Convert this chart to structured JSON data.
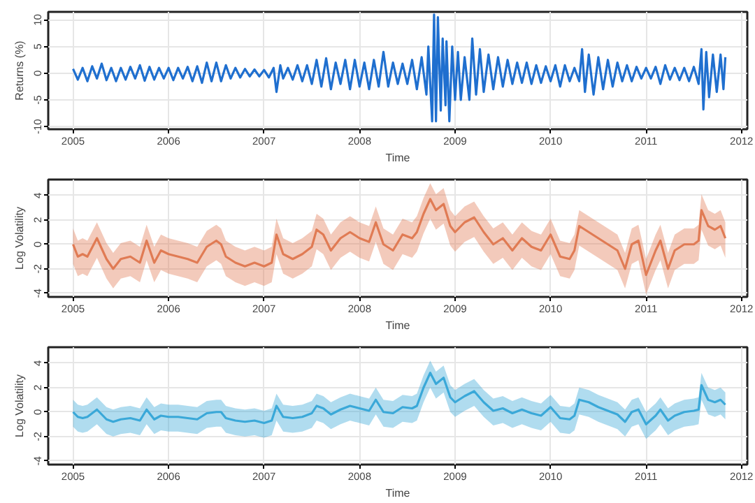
{
  "chart_data": [
    {
      "type": "line",
      "xlabel": "Time",
      "ylabel": "Returns (%)",
      "xlim": [
        2004.74,
        2012.06
      ],
      "xticks": [
        2005,
        2006,
        2007,
        2008,
        2009,
        2010,
        2011,
        2012
      ],
      "ylim": [
        -10.5,
        11.5
      ],
      "yticks": [
        -10,
        -5,
        0,
        5,
        10
      ],
      "grid": true,
      "x": [
        2005.0,
        2005.05,
        2005.1,
        2005.15,
        2005.2,
        2005.25,
        2005.3,
        2005.35,
        2005.4,
        2005.45,
        2005.5,
        2005.55,
        2005.6,
        2005.65,
        2005.7,
        2005.75,
        2005.8,
        2005.85,
        2005.9,
        2005.95,
        2006.0,
        2006.05,
        2006.1,
        2006.15,
        2006.2,
        2006.25,
        2006.3,
        2006.35,
        2006.4,
        2006.45,
        2006.5,
        2006.55,
        2006.6,
        2006.65,
        2006.7,
        2006.75,
        2006.8,
        2006.85,
        2006.9,
        2006.95,
        2007.0,
        2007.05,
        2007.1,
        2007.13,
        2007.17,
        2007.2,
        2007.25,
        2007.3,
        2007.35,
        2007.4,
        2007.45,
        2007.5,
        2007.55,
        2007.6,
        2007.65,
        2007.7,
        2007.75,
        2007.8,
        2007.85,
        2007.9,
        2007.95,
        2008.0,
        2008.05,
        2008.1,
        2008.15,
        2008.2,
        2008.25,
        2008.3,
        2008.35,
        2008.4,
        2008.45,
        2008.5,
        2008.55,
        2008.6,
        2008.65,
        2008.7,
        2008.72,
        2008.76,
        2008.78,
        2008.8,
        2008.82,
        2008.85,
        2008.87,
        2008.9,
        2008.91,
        2008.94,
        2008.97,
        2009.0,
        2009.03,
        2009.06,
        2009.1,
        2009.15,
        2009.18,
        2009.22,
        2009.26,
        2009.3,
        2009.35,
        2009.4,
        2009.45,
        2009.5,
        2009.55,
        2009.6,
        2009.65,
        2009.7,
        2009.75,
        2009.8,
        2009.85,
        2009.9,
        2009.95,
        2010.0,
        2010.05,
        2010.1,
        2010.15,
        2010.2,
        2010.25,
        2010.3,
        2010.33,
        2010.36,
        2010.4,
        2010.45,
        2010.5,
        2010.55,
        2010.6,
        2010.65,
        2010.7,
        2010.75,
        2010.8,
        2010.85,
        2010.9,
        2010.95,
        2011.0,
        2011.05,
        2011.1,
        2011.15,
        2011.2,
        2011.25,
        2011.3,
        2011.35,
        2011.4,
        2011.45,
        2011.5,
        2011.55,
        2011.58,
        2011.6,
        2011.63,
        2011.66,
        2011.7,
        2011.74,
        2011.78,
        2011.81,
        2011.83
      ],
      "series": [
        {
          "color": "#1f6fcf",
          "values": [
            0.8,
            -1.2,
            1.0,
            -1.5,
            1.3,
            -1.0,
            1.8,
            -1.3,
            1.0,
            -1.5,
            1.0,
            -1.2,
            1.2,
            -1.0,
            1.5,
            -1.4,
            1.2,
            -1.2,
            1.0,
            -1.0,
            1.0,
            -1.3,
            1.0,
            -1.0,
            1.2,
            -1.5,
            1.3,
            -1.8,
            2.0,
            -1.5,
            2.0,
            -1.5,
            1.5,
            -1.0,
            1.0,
            -0.8,
            0.8,
            -0.6,
            0.7,
            -0.6,
            0.6,
            -0.8,
            1.0,
            -3.5,
            1.5,
            -1.0,
            1.0,
            -1.2,
            1.5,
            -1.5,
            1.5,
            -2.0,
            2.5,
            -2.5,
            2.8,
            -3.0,
            2.0,
            -2.0,
            2.5,
            -3.0,
            2.5,
            -2.5,
            2.0,
            -3.0,
            2.5,
            -2.5,
            4.0,
            -2.5,
            2.0,
            -2.0,
            1.8,
            -2.0,
            2.5,
            -3.0,
            3.0,
            -4.0,
            5.0,
            -9.0,
            11.0,
            -9.0,
            10.5,
            -7.0,
            6.5,
            -6.0,
            6.0,
            -9.0,
            5.0,
            -5.0,
            4.0,
            -5.0,
            3.0,
            -5.0,
            6.5,
            -4.0,
            4.5,
            -3.5,
            3.5,
            -3.0,
            3.0,
            -2.5,
            2.5,
            -2.0,
            2.0,
            -1.8,
            2.0,
            -2.0,
            1.5,
            -1.8,
            1.3,
            -1.5,
            1.5,
            -2.5,
            1.5,
            -1.5,
            1.0,
            -1.5,
            4.5,
            -3.5,
            3.5,
            -4.0,
            3.0,
            -3.0,
            2.5,
            -2.5,
            2.0,
            -1.5,
            1.5,
            -1.5,
            1.2,
            -1.0,
            1.0,
            -1.0,
            1.2,
            -2.0,
            1.5,
            -1.2,
            1.0,
            -1.3,
            1.0,
            -1.5,
            1.2,
            -2.0,
            4.5,
            -6.8,
            4.0,
            -4.5,
            3.5,
            -3.5,
            3.5,
            -3.0,
            3.0
          ]
        }
      ]
    },
    {
      "type": "line",
      "xlabel": "Time",
      "ylabel": "Log Volatility",
      "xlim": [
        2004.74,
        2012.06
      ],
      "xticks": [
        2005,
        2006,
        2007,
        2008,
        2009,
        2010,
        2011,
        2012
      ],
      "ylim": [
        -4.3,
        5.3
      ],
      "yticks": [
        -4,
        -2,
        0,
        2,
        4
      ],
      "grid": true,
      "x": [
        2005.0,
        2005.05,
        2005.1,
        2005.15,
        2005.25,
        2005.35,
        2005.42,
        2005.5,
        2005.6,
        2005.7,
        2005.77,
        2005.85,
        2005.92,
        2006.0,
        2006.1,
        2006.2,
        2006.3,
        2006.4,
        2006.5,
        2006.55,
        2006.6,
        2006.7,
        2006.8,
        2006.9,
        2007.0,
        2007.08,
        2007.13,
        2007.2,
        2007.3,
        2007.4,
        2007.5,
        2007.55,
        2007.62,
        2007.7,
        2007.8,
        2007.9,
        2008.0,
        2008.1,
        2008.17,
        2008.25,
        2008.35,
        2008.45,
        2008.55,
        2008.6,
        2008.67,
        2008.74,
        2008.8,
        2008.88,
        2008.95,
        2009.0,
        2009.1,
        2009.2,
        2009.3,
        2009.4,
        2009.5,
        2009.6,
        2009.7,
        2009.8,
        2009.9,
        2010.0,
        2010.1,
        2010.2,
        2010.25,
        2010.3,
        2010.4,
        2010.5,
        2010.6,
        2010.7,
        2010.78,
        2010.85,
        2010.92,
        2011.0,
        2011.1,
        2011.15,
        2011.23,
        2011.3,
        2011.4,
        2011.5,
        2011.55,
        2011.58,
        2011.65,
        2011.72,
        2011.78,
        2011.83
      ],
      "series": [
        {
          "color": "#e07b54",
          "values": [
            0,
            -1.0,
            -0.8,
            -1.0,
            0.5,
            -1.2,
            -2.0,
            -1.2,
            -1.0,
            -1.5,
            0.3,
            -1.5,
            -0.5,
            -0.8,
            -1.0,
            -1.2,
            -1.5,
            -0.2,
            0.3,
            0.0,
            -1.0,
            -1.5,
            -1.8,
            -1.5,
            -1.8,
            -1.5,
            0.8,
            -0.8,
            -1.2,
            -0.8,
            -0.2,
            1.2,
            0.8,
            -0.5,
            0.5,
            1.0,
            0.5,
            0.2,
            1.8,
            0.0,
            -0.5,
            0.8,
            0.5,
            1.0,
            2.5,
            3.7,
            2.8,
            3.3,
            1.5,
            1.0,
            1.8,
            2.2,
            1.0,
            0.0,
            0.5,
            -0.5,
            0.5,
            -0.2,
            -0.5,
            0.8,
            -1.0,
            -1.2,
            -0.5,
            1.5,
            1.0,
            0.5,
            0.0,
            -0.5,
            -2.0,
            0.0,
            0.3,
            -2.5,
            -0.5,
            0.3,
            -2.0,
            -0.5,
            0.0,
            0.0,
            0.3,
            2.8,
            1.5,
            1.2,
            1.5,
            0.5
          ],
          "upper": [
            1.3,
            0.3,
            0.5,
            0.3,
            1.8,
            0.1,
            -0.7,
            0.1,
            0.3,
            -0.2,
            1.6,
            -0.2,
            0.8,
            0.5,
            0.3,
            0.1,
            -0.2,
            1.1,
            1.6,
            1.3,
            0.3,
            -0.2,
            -0.5,
            -0.2,
            -0.5,
            -0.2,
            2.1,
            0.5,
            0.1,
            0.5,
            1.1,
            2.5,
            2.1,
            0.8,
            1.8,
            2.3,
            1.8,
            1.5,
            3.1,
            1.3,
            0.8,
            2.1,
            1.8,
            2.3,
            3.8,
            5.0,
            4.1,
            4.6,
            2.8,
            2.3,
            3.1,
            3.5,
            2.3,
            1.3,
            1.8,
            0.8,
            1.8,
            1.1,
            0.8,
            2.1,
            0.3,
            0.1,
            0.8,
            2.8,
            2.3,
            1.8,
            1.3,
            0.8,
            -0.7,
            1.3,
            1.6,
            -1.2,
            0.8,
            1.6,
            -0.7,
            0.8,
            1.3,
            1.3,
            1.6,
            4.1,
            2.8,
            2.5,
            2.8,
            1.8
          ],
          "lower": [
            -1.6,
            -2.6,
            -2.4,
            -2.6,
            -1.1,
            -2.8,
            -3.6,
            -2.8,
            -2.6,
            -3.1,
            -1.3,
            -3.1,
            -2.1,
            -2.4,
            -2.6,
            -2.8,
            -3.1,
            -1.8,
            -1.3,
            -1.6,
            -2.6,
            -3.1,
            -3.4,
            -3.1,
            -3.4,
            -3.1,
            -0.8,
            -2.4,
            -2.8,
            -2.4,
            -1.8,
            -0.4,
            -0.8,
            -2.1,
            -1.1,
            -0.6,
            -1.1,
            -1.4,
            0.2,
            -1.6,
            -2.1,
            -0.8,
            -1.1,
            -0.6,
            0.9,
            2.1,
            1.2,
            1.7,
            -0.1,
            -0.6,
            0.2,
            0.6,
            -0.6,
            -1.6,
            -1.1,
            -2.1,
            -1.1,
            -1.8,
            -2.1,
            -0.8,
            -2.6,
            -2.8,
            -2.1,
            -0.1,
            -0.6,
            -1.1,
            -1.6,
            -2.1,
            -3.6,
            -1.6,
            -1.3,
            -4.1,
            -2.1,
            -1.3,
            -3.6,
            -2.1,
            -1.6,
            -1.6,
            -1.3,
            1.2,
            -0.1,
            -0.4,
            -0.1,
            -1.1
          ]
        }
      ]
    },
    {
      "type": "line",
      "xlabel": "Time",
      "ylabel": "Log Volatility",
      "xlim": [
        2004.74,
        2012.06
      ],
      "xticks": [
        2005,
        2006,
        2007,
        2008,
        2009,
        2010,
        2011,
        2012
      ],
      "ylim": [
        -4.3,
        5.3
      ],
      "yticks": [
        -4,
        -2,
        0,
        2,
        4
      ],
      "grid": true,
      "x": [
        2005.0,
        2005.05,
        2005.1,
        2005.15,
        2005.25,
        2005.35,
        2005.42,
        2005.5,
        2005.6,
        2005.7,
        2005.77,
        2005.85,
        2005.92,
        2006.0,
        2006.1,
        2006.2,
        2006.3,
        2006.4,
        2006.5,
        2006.55,
        2006.6,
        2006.7,
        2006.8,
        2006.9,
        2007.0,
        2007.08,
        2007.13,
        2007.2,
        2007.3,
        2007.4,
        2007.5,
        2007.55,
        2007.62,
        2007.7,
        2007.8,
        2007.9,
        2008.0,
        2008.1,
        2008.17,
        2008.25,
        2008.35,
        2008.45,
        2008.55,
        2008.6,
        2008.67,
        2008.74,
        2008.8,
        2008.88,
        2008.95,
        2009.0,
        2009.1,
        2009.2,
        2009.3,
        2009.4,
        2009.5,
        2009.6,
        2009.7,
        2009.8,
        2009.9,
        2010.0,
        2010.1,
        2010.2,
        2010.25,
        2010.3,
        2010.4,
        2010.5,
        2010.6,
        2010.7,
        2010.78,
        2010.85,
        2010.92,
        2011.0,
        2011.1,
        2011.15,
        2011.23,
        2011.3,
        2011.4,
        2011.5,
        2011.55,
        2011.58,
        2011.65,
        2011.72,
        2011.78,
        2011.83
      ],
      "series": [
        {
          "color": "#3aa8d8",
          "values": [
            0,
            -0.4,
            -0.5,
            -0.4,
            0.2,
            -0.6,
            -0.8,
            -0.6,
            -0.5,
            -0.7,
            0.2,
            -0.6,
            -0.3,
            -0.4,
            -0.4,
            -0.5,
            -0.6,
            -0.1,
            0.0,
            0.0,
            -0.5,
            -0.7,
            -0.8,
            -0.7,
            -0.9,
            -0.7,
            0.5,
            -0.4,
            -0.5,
            -0.4,
            -0.1,
            0.5,
            0.3,
            -0.2,
            0.2,
            0.5,
            0.3,
            0.1,
            1.0,
            0.0,
            -0.1,
            0.4,
            0.3,
            0.5,
            2.0,
            3.2,
            2.3,
            2.8,
            1.2,
            0.8,
            1.3,
            1.7,
            0.8,
            0.1,
            0.3,
            -0.1,
            0.2,
            -0.1,
            -0.3,
            0.4,
            -0.5,
            -0.6,
            -0.3,
            1.0,
            0.8,
            0.4,
            0.1,
            -0.2,
            -0.8,
            0.0,
            0.2,
            -1.0,
            -0.3,
            0.2,
            -0.7,
            -0.3,
            0.0,
            0.1,
            0.2,
            2.2,
            1.0,
            0.8,
            1.0,
            0.6
          ],
          "upper": [
            1.0,
            0.6,
            0.5,
            0.6,
            1.2,
            0.4,
            0.2,
            0.4,
            0.5,
            0.3,
            1.2,
            0.4,
            0.7,
            0.6,
            0.6,
            0.5,
            0.4,
            0.9,
            1.0,
            1.0,
            0.5,
            0.3,
            0.2,
            0.3,
            0.1,
            0.3,
            1.5,
            0.6,
            0.5,
            0.6,
            0.9,
            1.5,
            1.3,
            0.8,
            1.2,
            1.5,
            1.3,
            1.1,
            2.0,
            1.0,
            0.9,
            1.4,
            1.3,
            1.5,
            3.0,
            4.2,
            3.3,
            3.8,
            2.2,
            1.8,
            2.3,
            2.7,
            1.8,
            1.1,
            1.3,
            0.9,
            1.2,
            0.9,
            0.7,
            1.4,
            0.5,
            0.4,
            0.7,
            2.0,
            1.8,
            1.4,
            1.1,
            0.8,
            0.2,
            1.0,
            1.2,
            0.0,
            0.7,
            1.2,
            0.3,
            0.7,
            1.0,
            1.1,
            1.2,
            3.2,
            2.0,
            1.8,
            2.0,
            1.6
          ],
          "lower": [
            -1.2,
            -1.6,
            -1.7,
            -1.6,
            -1.0,
            -1.8,
            -2.0,
            -1.8,
            -1.7,
            -1.9,
            -1.0,
            -1.8,
            -1.5,
            -1.6,
            -1.6,
            -1.7,
            -1.8,
            -1.3,
            -1.2,
            -1.2,
            -1.7,
            -1.9,
            -2.0,
            -1.9,
            -2.1,
            -1.9,
            -0.7,
            -1.6,
            -1.7,
            -1.6,
            -1.3,
            -0.7,
            -0.9,
            -1.4,
            -1.0,
            -0.7,
            -0.9,
            -1.1,
            -0.2,
            -1.2,
            -1.3,
            -0.8,
            -0.9,
            -0.7,
            0.8,
            2.0,
            1.1,
            1.6,
            0.0,
            -0.4,
            0.1,
            0.5,
            -0.4,
            -1.1,
            -0.9,
            -1.3,
            -1.0,
            -1.3,
            -1.5,
            -0.8,
            -1.7,
            -1.8,
            -1.5,
            -0.2,
            -0.4,
            -0.8,
            -1.1,
            -1.4,
            -2.0,
            -1.2,
            -1.0,
            -2.2,
            -1.5,
            -1.0,
            -1.9,
            -1.5,
            -1.2,
            -1.1,
            -1.0,
            1.0,
            -0.2,
            -0.4,
            -0.2,
            -0.6
          ]
        }
      ]
    }
  ]
}
